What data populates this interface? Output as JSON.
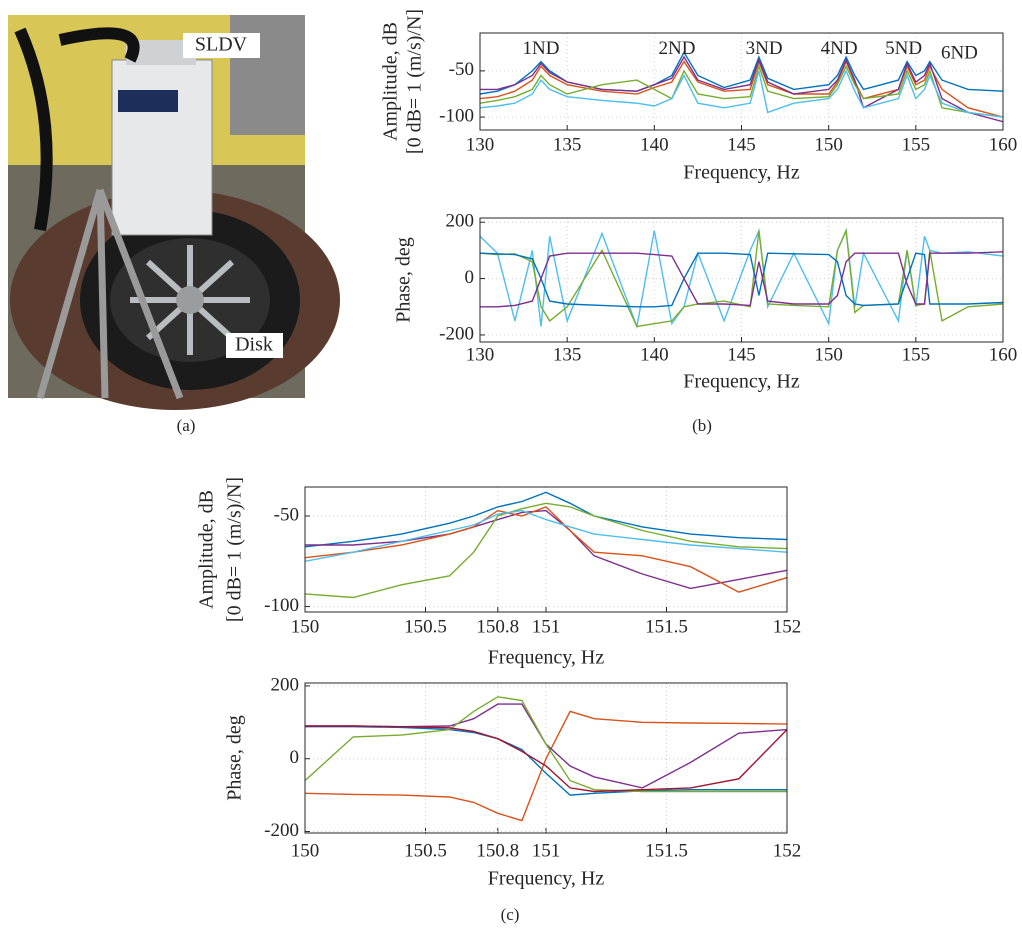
{
  "photo": {
    "labels": [
      "SLDV",
      "Disk"
    ]
  },
  "captions": [
    "(a)",
    "(b)",
    "(c)"
  ],
  "chart_data": [
    {
      "type": "line",
      "xlabel": "Frequency, Hz",
      "ylabel": [
        "Amplitude, dB",
        "[0 dB= 1 (m/s)/N]"
      ],
      "xlim": [
        130,
        160
      ],
      "ylim": [
        -114,
        -9
      ],
      "xticks": [
        130,
        135,
        140,
        145,
        150,
        155,
        160
      ],
      "yticks": [
        -100,
        -50
      ],
      "grid": true,
      "annotations": [
        {
          "text": "1ND",
          "x": 133.5,
          "y": -27
        },
        {
          "text": "2ND",
          "x": 141.3,
          "y": -27
        },
        {
          "text": "3ND",
          "x": 146.3,
          "y": -27
        },
        {
          "text": "4ND",
          "x": 150.6,
          "y": -27
        },
        {
          "text": "5ND",
          "x": 154.3,
          "y": -27
        },
        {
          "text": "6ND",
          "x": 157.5,
          "y": -32
        }
      ],
      "x": [
        130,
        131,
        132,
        133,
        133.5,
        134,
        135,
        137,
        139,
        140,
        141,
        141.7,
        142.5,
        144,
        145.5,
        146,
        146.5,
        148,
        150,
        150.5,
        151,
        151.5,
        152,
        154,
        154.5,
        155,
        155.5,
        155.8,
        156.5,
        158,
        160
      ],
      "series": [
        {
          "color": "#0072BD",
          "values": [
            -75,
            -72,
            -65,
            -50,
            -40,
            -50,
            -62,
            -70,
            -72,
            -65,
            -55,
            -30,
            -55,
            -68,
            -60,
            -35,
            -58,
            -70,
            -65,
            -55,
            -35,
            -55,
            -70,
            -60,
            -40,
            -55,
            -50,
            -40,
            -60,
            -70,
            -72
          ]
        },
        {
          "color": "#D95319",
          "values": [
            -80,
            -78,
            -72,
            -60,
            -45,
            -55,
            -65,
            -72,
            -75,
            -68,
            -62,
            -40,
            -62,
            -72,
            -70,
            -40,
            -65,
            -75,
            -75,
            -62,
            -40,
            -62,
            -80,
            -70,
            -45,
            -65,
            -60,
            -45,
            -70,
            -90,
            -100
          ]
        },
        {
          "color": "#7E2F8E",
          "values": [
            -70,
            -70,
            -65,
            -55,
            -42,
            -52,
            -62,
            -70,
            -72,
            -65,
            -58,
            -35,
            -60,
            -70,
            -65,
            -38,
            -62,
            -75,
            -70,
            -60,
            -38,
            -60,
            -90,
            -70,
            -42,
            -62,
            -55,
            -42,
            -80,
            -95,
            -105
          ]
        },
        {
          "color": "#77AC30",
          "values": [
            -85,
            -82,
            -78,
            -70,
            -55,
            -65,
            -75,
            -65,
            -60,
            -70,
            -80,
            -50,
            -75,
            -80,
            -78,
            -45,
            -72,
            -80,
            -78,
            -65,
            -45,
            -65,
            -80,
            -75,
            -50,
            -70,
            -65,
            -50,
            -90,
            -95,
            -100
          ]
        },
        {
          "color": "#4DBEEE",
          "values": [
            -90,
            -88,
            -85,
            -75,
            -60,
            -70,
            -78,
            -82,
            -85,
            -88,
            -80,
            -55,
            -85,
            -90,
            -85,
            -50,
            -95,
            -85,
            -80,
            -70,
            -50,
            -72,
            -90,
            -80,
            -55,
            -80,
            -70,
            -55,
            -85,
            -95,
            -100
          ]
        }
      ]
    },
    {
      "type": "line",
      "xlabel": "Frequency, Hz",
      "ylabel": [
        "Phase, deg"
      ],
      "xlim": [
        130,
        160
      ],
      "ylim": [
        -225,
        215
      ],
      "xticks": [
        130,
        135,
        140,
        145,
        150,
        155,
        160
      ],
      "yticks": [
        -200,
        0,
        200
      ],
      "grid": true,
      "x": [
        130,
        131,
        132,
        133,
        133.5,
        134,
        135,
        137,
        139,
        140,
        141,
        141.7,
        142.5,
        144,
        145.5,
        146,
        146.5,
        148,
        150,
        150.5,
        151,
        151.5,
        152,
        154,
        154.5,
        155,
        155.5,
        155.8,
        156.5,
        158,
        160
      ],
      "series": [
        {
          "color": "#4DBEEE",
          "values": [
            150,
            90,
            -150,
            100,
            -170,
            150,
            -150,
            160,
            -170,
            170,
            -160,
            -100,
            90,
            -150,
            100,
            170,
            -100,
            90,
            -160,
            100,
            170,
            -100,
            90,
            -150,
            100,
            -100,
            150,
            100,
            90,
            95,
            80
          ]
        },
        {
          "color": "#77AC30",
          "values": [
            90,
            85,
            88,
            60,
            -100,
            -150,
            -100,
            100,
            -170,
            -160,
            -150,
            -100,
            -90,
            -80,
            -100,
            170,
            -90,
            -95,
            -100,
            100,
            170,
            -120,
            -95,
            -90,
            100,
            -95,
            -90,
            100,
            -150,
            -100,
            -90
          ]
        },
        {
          "color": "#0072BD",
          "values": [
            90,
            88,
            85,
            70,
            0,
            -80,
            -90,
            -95,
            -100,
            -100,
            -95,
            0,
            90,
            90,
            85,
            -60,
            90,
            88,
            85,
            60,
            -60,
            -90,
            -95,
            -90,
            0,
            90,
            85,
            -90,
            -90,
            -90,
            -85
          ]
        },
        {
          "color": "#7E2F8E",
          "values": [
            -100,
            -100,
            -95,
            -80,
            0,
            80,
            90,
            90,
            90,
            85,
            80,
            0,
            -90,
            -90,
            -95,
            60,
            -80,
            -90,
            -90,
            -60,
            60,
            90,
            90,
            90,
            -20,
            -90,
            -90,
            90,
            90,
            90,
            95
          ]
        }
      ]
    },
    {
      "type": "line",
      "xlabel": "Frequency, Hz",
      "ylabel": [
        "Amplitude, dB",
        "[0 dB= 1 (m/s)/N]"
      ],
      "xlim": [
        150,
        152
      ],
      "ylim": [
        -103,
        -34
      ],
      "xticks": [
        150,
        150.5,
        150.8,
        151,
        151.5,
        152
      ],
      "yticks": [
        -100,
        -50
      ],
      "grid": true,
      "x": [
        150,
        150.2,
        150.4,
        150.6,
        150.7,
        150.8,
        150.9,
        151,
        151.1,
        151.2,
        151.4,
        151.6,
        151.8,
        152
      ],
      "series": [
        {
          "color": "#0072BD",
          "values": [
            -67,
            -64,
            -60,
            -54,
            -50,
            -45,
            -42,
            -37,
            -43,
            -50,
            -56,
            -60,
            -62,
            -63
          ]
        },
        {
          "color": "#7E2F8E",
          "values": [
            -66,
            -66,
            -64,
            -60,
            -56,
            -52,
            -48,
            -47,
            -58,
            -72,
            -82,
            -90,
            -85,
            -80
          ]
        },
        {
          "color": "#77AC30",
          "values": [
            -93,
            -95,
            -88,
            -83,
            -70,
            -50,
            -46,
            -43,
            -45,
            -50,
            -58,
            -64,
            -67,
            -68
          ]
        },
        {
          "color": "#D95319",
          "values": [
            -73,
            -70,
            -66,
            -60,
            -56,
            -47,
            -50,
            -45,
            -58,
            -70,
            -72,
            -78,
            -92,
            -84
          ]
        },
        {
          "color": "#4DBEEE",
          "values": [
            -75,
            -70,
            -64,
            -58,
            -55,
            -49,
            -47,
            -52,
            -56,
            -60,
            -63,
            -66,
            -68,
            -70
          ]
        }
      ]
    },
    {
      "type": "line",
      "xlabel": "Frequency, Hz",
      "ylabel": [
        "Phase, deg"
      ],
      "xlim": [
        150,
        152
      ],
      "ylim": [
        -204,
        208
      ],
      "xticks": [
        150,
        150.5,
        150.8,
        151,
        151.5,
        152
      ],
      "yticks": [
        -200,
        0,
        200
      ],
      "grid": true,
      "x": [
        150,
        150.2,
        150.4,
        150.6,
        150.7,
        150.8,
        150.9,
        151,
        151.1,
        151.2,
        151.4,
        151.6,
        151.8,
        152
      ],
      "series": [
        {
          "color": "#0072BD",
          "values": [
            88,
            88,
            86,
            80,
            72,
            55,
            25,
            -40,
            -100,
            -95,
            -88,
            -85,
            -85,
            -85
          ]
        },
        {
          "color": "#D95319",
          "values": [
            -95,
            -98,
            -100,
            -105,
            -120,
            -150,
            -170,
            0,
            130,
            110,
            100,
            98,
            97,
            95
          ]
        },
        {
          "color": "#7E2F8E",
          "values": [
            90,
            90,
            88,
            90,
            110,
            150,
            150,
            40,
            -20,
            -50,
            -80,
            -10,
            70,
            80
          ]
        },
        {
          "color": "#77AC30",
          "values": [
            -60,
            60,
            65,
            80,
            130,
            170,
            160,
            40,
            -60,
            -85,
            -90,
            -90,
            -90,
            -90
          ]
        },
        {
          "color": "#A2142F",
          "values": [
            90,
            90,
            88,
            85,
            75,
            55,
            20,
            -20,
            -80,
            -90,
            -85,
            -80,
            -55,
            80
          ]
        }
      ]
    }
  ]
}
